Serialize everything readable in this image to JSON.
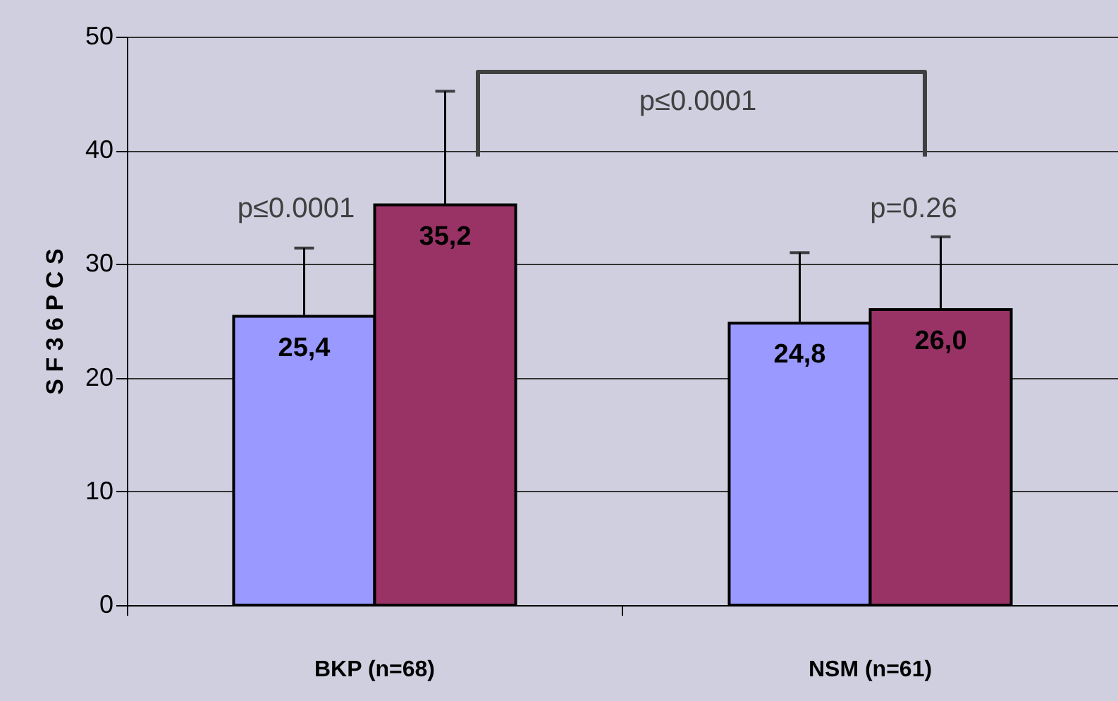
{
  "chart_data": {
    "type": "bar",
    "categories": [
      "BKP (n=68)",
      "NSM (n=61)"
    ],
    "ylabel": "S F 3 6  P C S",
    "series": [
      {
        "color": "#9999ff",
        "values": [
          25.4,
          24.8
        ],
        "value_labels": [
          "25,4",
          "24,8"
        ],
        "errors": [
          [
            25.4,
            31.4
          ],
          [
            24.8,
            31.0
          ]
        ]
      },
      {
        "color": "#993366",
        "values": [
          35.2,
          26.0
        ],
        "value_labels": [
          "35,2",
          "26,0"
        ],
        "errors": [
          [
            35.2,
            45.2
          ],
          [
            26.0,
            32.4
          ]
        ]
      }
    ],
    "ylim": [
      0,
      50
    ],
    "yticks": [
      0,
      10,
      20,
      30,
      40,
      50
    ],
    "grid": "y",
    "annotations": [
      "p≤0.0001",
      "p=0.26",
      "p≤0.0001"
    ]
  }
}
